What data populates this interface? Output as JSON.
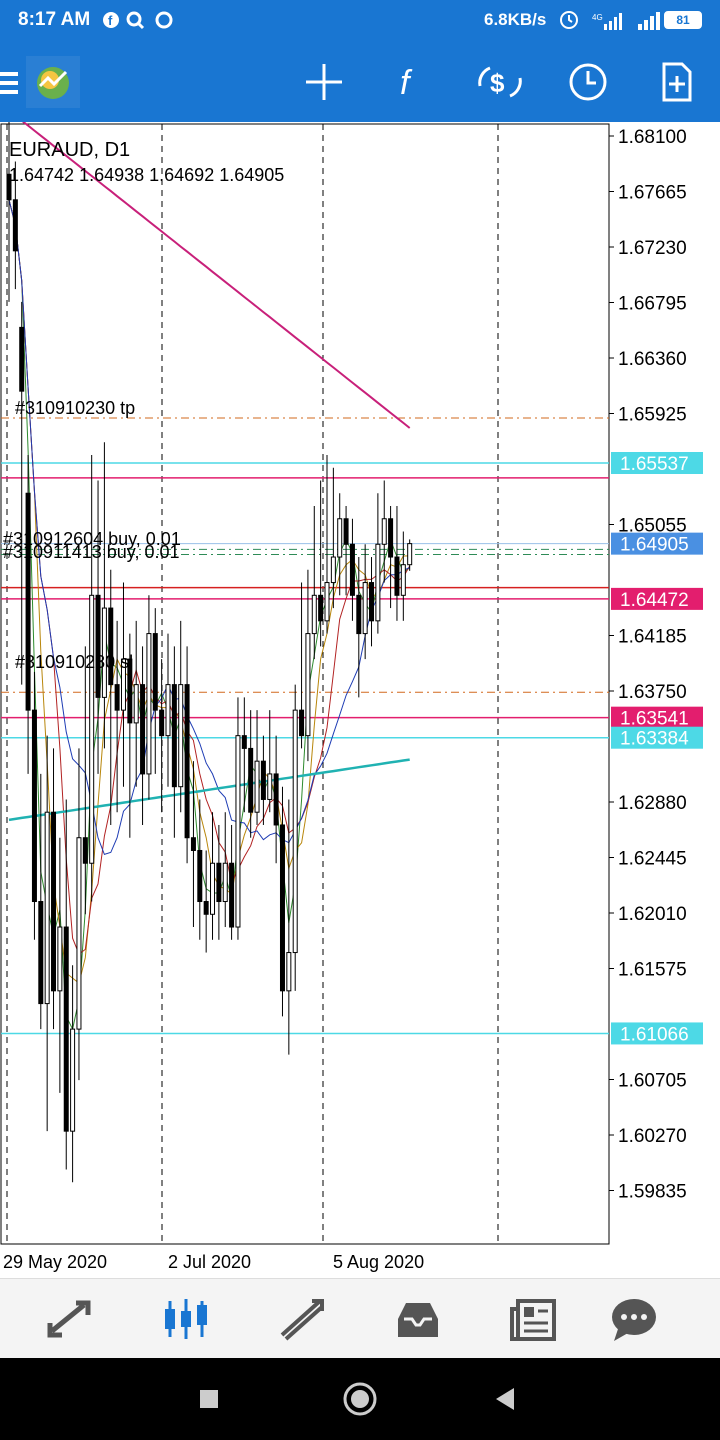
{
  "status_bar": {
    "time": "8:17 AM",
    "speed": "6.8KB/s",
    "battery": "81",
    "network": "4G"
  },
  "toolbar": {
    "icons": [
      "menu-icon",
      "metatrader-logo",
      "crosshair-icon",
      "indicators-icon",
      "trade-icon",
      "timeframe-icon",
      "new-order-icon"
    ]
  },
  "colors": {
    "brand": "#1976d2",
    "ma_200": "#c8207a",
    "ma_slow": "#20b2b2",
    "level_cyan": "#4dd9e6",
    "level_magenta": "#e31e6e",
    "level_red": "#d62020",
    "price_blue": "#4a90e2"
  },
  "chart": {
    "symbol": "EURAUD, D1",
    "ohlc": "1.64742 1.64938 1.64692 1.64905",
    "order_tp": "#310910230 tp",
    "order_buy_1": "#310912604 buy, 0.01",
    "order_buy_2": "#310911413 buy, 0.01",
    "order_sl": "#310910230 sl",
    "y_ticks": [
      "1.68100",
      "1.67665",
      "1.67230",
      "1.66795",
      "1.66360",
      "1.65925",
      "1.65055",
      "1.64185",
      "1.63750",
      "1.62880",
      "1.62445",
      "1.62010",
      "1.61575",
      "1.60705",
      "1.60270",
      "1.59835"
    ],
    "x_ticks": [
      "29 May 2020",
      "2 Jul 2020",
      "5 Aug 2020"
    ],
    "price_labels": [
      {
        "value": "1.65537",
        "color": "#4dd9e6"
      },
      {
        "value": "1.64905",
        "color": "#4a90e2"
      },
      {
        "value": "1.64472",
        "color": "#e31e6e"
      },
      {
        "value": "1.63541",
        "color": "#e31e6e"
      },
      {
        "value": "1.63384",
        "color": "#4dd9e6"
      },
      {
        "value": "1.61066",
        "color": "#4dd9e6"
      }
    ]
  },
  "chart_data": {
    "type": "candlestick",
    "symbol": "EURAUD",
    "timeframe": "D1",
    "ylim": [
      1.5955,
      1.6823
    ],
    "x_labels": [
      "29 May 2020",
      "2 Jul 2020",
      "5 Aug 2020"
    ],
    "last_bar": {
      "open": 1.64742,
      "high": 1.64938,
      "low": 1.64692,
      "close": 1.64905
    },
    "levels": [
      {
        "name": "#310910230 tp",
        "value": 1.6589
      },
      {
        "name": "#310912604 buy, 0.01",
        "value": 1.6486
      },
      {
        "name": "#310911413 buy, 0.01",
        "value": 1.6482
      },
      {
        "name": "#310910230 sl",
        "value": 1.6374
      },
      {
        "name": "hline",
        "value": 1.65537
      },
      {
        "name": "hline",
        "value": 1.64472
      },
      {
        "name": "hline",
        "value": 1.63541
      },
      {
        "name": "hline",
        "value": 1.63384
      },
      {
        "name": "hline",
        "value": 1.61066
      }
    ],
    "candles": [
      [
        1.678,
        1.676,
        1.684,
        1.668
      ],
      [
        1.676,
        1.672,
        1.679,
        1.669
      ],
      [
        1.666,
        1.661,
        1.668,
        1.638
      ],
      [
        1.653,
        1.636,
        1.656,
        1.631
      ],
      [
        1.636,
        1.621,
        1.639,
        1.618
      ],
      [
        1.621,
        1.613,
        1.631,
        1.611
      ],
      [
        1.613,
        1.628,
        1.634,
        1.603
      ],
      [
        1.628,
        1.614,
        1.633,
        1.611
      ],
      [
        1.614,
        1.619,
        1.626,
        1.606
      ],
      [
        1.619,
        1.603,
        1.629,
        1.6
      ],
      [
        1.603,
        1.611,
        1.616,
        1.599
      ],
      [
        1.611,
        1.626,
        1.633,
        1.607
      ],
      [
        1.626,
        1.624,
        1.641,
        1.62
      ],
      [
        1.624,
        1.645,
        1.656,
        1.621
      ],
      [
        1.645,
        1.637,
        1.654,
        1.631
      ],
      [
        1.637,
        1.644,
        1.657,
        1.633
      ],
      [
        1.644,
        1.638,
        1.647,
        1.627
      ],
      [
        1.638,
        1.636,
        1.643,
        1.628
      ],
      [
        1.636,
        1.64,
        1.646,
        1.63
      ],
      [
        1.64,
        1.635,
        1.642,
        1.626
      ],
      [
        1.635,
        1.638,
        1.643,
        1.63
      ],
      [
        1.638,
        1.631,
        1.641,
        1.627
      ],
      [
        1.631,
        1.642,
        1.645,
        1.629
      ],
      [
        1.642,
        1.636,
        1.644,
        1.631
      ],
      [
        1.636,
        1.634,
        1.64,
        1.628
      ],
      [
        1.634,
        1.638,
        1.642,
        1.63
      ],
      [
        1.638,
        1.63,
        1.641,
        1.626
      ],
      [
        1.63,
        1.638,
        1.643,
        1.628
      ],
      [
        1.638,
        1.626,
        1.641,
        1.624
      ],
      [
        1.626,
        1.625,
        1.632,
        1.619
      ],
      [
        1.625,
        1.621,
        1.629,
        1.618
      ],
      [
        1.621,
        1.62,
        1.625,
        1.617
      ],
      [
        1.62,
        1.624,
        1.628,
        1.618
      ],
      [
        1.624,
        1.621,
        1.627,
        1.618
      ],
      [
        1.621,
        1.624,
        1.628,
        1.619
      ],
      [
        1.624,
        1.619,
        1.627,
        1.618
      ],
      [
        1.619,
        1.634,
        1.637,
        1.618
      ],
      [
        1.634,
        1.633,
        1.637,
        1.628
      ],
      [
        1.633,
        1.628,
        1.636,
        1.626
      ],
      [
        1.628,
        1.632,
        1.636,
        1.627
      ],
      [
        1.632,
        1.629,
        1.634,
        1.627
      ],
      [
        1.629,
        1.631,
        1.636,
        1.628
      ],
      [
        1.631,
        1.627,
        1.634,
        1.624
      ],
      [
        1.627,
        1.614,
        1.63,
        1.612
      ],
      [
        1.614,
        1.617,
        1.629,
        1.609
      ],
      [
        1.617,
        1.636,
        1.638,
        1.614
      ],
      [
        1.636,
        1.634,
        1.646,
        1.633
      ],
      [
        1.634,
        1.642,
        1.647,
        1.632
      ],
      [
        1.642,
        1.645,
        1.652,
        1.64
      ],
      [
        1.645,
        1.643,
        1.654,
        1.641
      ],
      [
        1.643,
        1.646,
        1.656,
        1.642
      ],
      [
        1.646,
        1.648,
        1.655,
        1.644
      ],
      [
        1.648,
        1.651,
        1.653,
        1.645
      ],
      [
        1.651,
        1.649,
        1.652,
        1.645
      ],
      [
        1.649,
        1.645,
        1.651,
        1.643
      ],
      [
        1.645,
        1.642,
        1.648,
        1.637
      ],
      [
        1.642,
        1.646,
        1.649,
        1.64
      ],
      [
        1.646,
        1.643,
        1.648,
        1.641
      ],
      [
        1.643,
        1.649,
        1.653,
        1.642
      ],
      [
        1.649,
        1.651,
        1.654,
        1.646
      ],
      [
        1.651,
        1.648,
        1.652,
        1.644
      ],
      [
        1.648,
        1.645,
        1.652,
        1.643
      ],
      [
        1.645,
        1.6474,
        1.65,
        1.643
      ],
      [
        1.6474,
        1.64905,
        1.64938,
        1.64692
      ]
    ]
  },
  "bottom_nav": {
    "items": [
      "quotes-icon",
      "chart-icon",
      "trade-icon",
      "history-icon",
      "news-icon",
      "messages-icon"
    ]
  }
}
